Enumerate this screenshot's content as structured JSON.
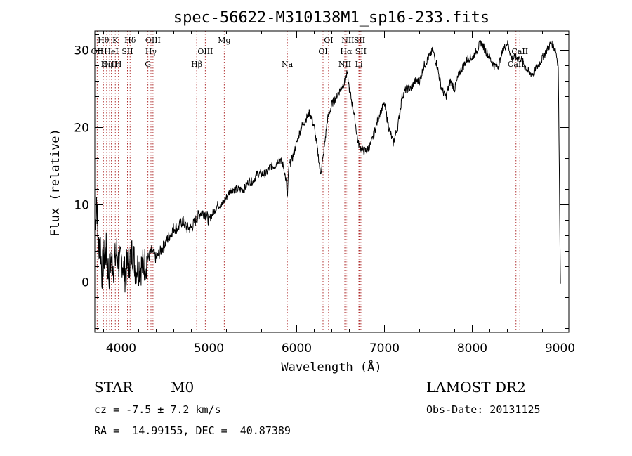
{
  "chart_data": {
    "type": "line",
    "title": "spec-56622-M310138M1_sp16-233.fits",
    "xlabel": "Wavelength (Å)",
    "ylabel": "Flux (relative)",
    "xlim": [
      3700,
      9100
    ],
    "ylim": [
      -6.5,
      32.5
    ],
    "xticks": [
      4000,
      5000,
      6000,
      7000,
      8000,
      9000
    ],
    "yticks": [
      0,
      10,
      20,
      30
    ],
    "series": [
      {
        "name": "flux",
        "x": [
          3700,
          3720,
          3740,
          3760,
          3780,
          3800,
          3830,
          3860,
          3890,
          3920,
          3950,
          3980,
          4010,
          4040,
          4070,
          4100,
          4130,
          4160,
          4200,
          4250,
          4300,
          4350,
          4400,
          4450,
          4500,
          4550,
          4600,
          4650,
          4700,
          4750,
          4800,
          4850,
          4900,
          4950,
          5000,
          5050,
          5100,
          5150,
          5200,
          5250,
          5300,
          5350,
          5400,
          5450,
          5500,
          5550,
          5600,
          5650,
          5700,
          5750,
          5800,
          5850,
          5880,
          5895,
          5910,
          5950,
          6000,
          6050,
          6100,
          6150,
          6200,
          6250,
          6270,
          6300,
          6350,
          6400,
          6450,
          6500,
          6550,
          6575,
          6600,
          6650,
          6700,
          6750,
          6800,
          6850,
          6900,
          6950,
          7000,
          7050,
          7100,
          7150,
          7200,
          7250,
          7300,
          7350,
          7400,
          7450,
          7500,
          7550,
          7600,
          7650,
          7700,
          7750,
          7800,
          7850,
          7900,
          7950,
          8000,
          8050,
          8100,
          8150,
          8200,
          8250,
          8300,
          8350,
          8400,
          8450,
          8500,
          8550,
          8600,
          8650,
          8700,
          8750,
          8800,
          8850,
          8900,
          8950,
          8980,
          9000,
          9005
        ],
        "y": [
          7,
          11,
          4,
          6,
          1,
          3,
          4,
          1,
          3,
          2,
          4,
          2,
          3,
          1,
          2,
          3,
          4,
          2,
          2,
          2,
          3,
          4,
          3,
          4,
          5,
          6,
          7,
          7,
          8,
          7,
          7,
          8,
          9,
          9,
          8,
          9,
          10,
          10,
          11,
          12,
          12,
          12,
          12,
          13,
          13,
          14,
          14,
          14,
          15,
          15,
          16,
          15,
          13,
          11,
          15,
          16,
          18,
          20,
          21,
          22,
          20,
          16,
          14,
          16,
          21,
          23,
          24,
          25,
          26,
          27,
          25,
          22,
          18,
          17,
          17,
          18,
          20,
          22,
          23,
          20,
          18,
          20,
          24,
          25,
          25,
          26,
          26,
          28,
          29,
          30,
          28,
          25,
          24,
          26,
          25,
          27,
          28,
          29,
          29,
          30,
          31,
          30,
          29,
          28,
          28,
          30,
          31,
          29,
          29,
          29,
          28,
          27,
          27,
          28,
          29,
          30,
          31,
          30,
          28,
          5,
          -0.2
        ]
      }
    ],
    "emission_lines": [
      {
        "label": "Hθ",
        "x": 3798,
        "row": 0
      },
      {
        "label": "OII",
        "x": 3727,
        "row": 1
      },
      {
        "label": "OIII",
        "x": 3869,
        "row": 2
      },
      {
        "label": "K",
        "x": 3934,
        "row": 0
      },
      {
        "label": "HeI",
        "x": 3889,
        "row": 1
      },
      {
        "label": "Hη",
        "x": 3835,
        "row": 2
      },
      {
        "label": "Hδ",
        "x": 4102,
        "row": 0
      },
      {
        "label": "SII",
        "x": 4072,
        "row": 1
      },
      {
        "label": "H",
        "x": 3969,
        "row": 2
      },
      {
        "label": "OIII",
        "x": 4363,
        "row": 0
      },
      {
        "label": "Hγ",
        "x": 4340,
        "row": 1
      },
      {
        "label": "G",
        "x": 4305,
        "row": 2
      },
      {
        "label": "OIII",
        "x": 4959,
        "row": 1
      },
      {
        "label": "Hβ",
        "x": 4861,
        "row": 2
      },
      {
        "label": "Mg",
        "x": 5175,
        "row": 0
      },
      {
        "label": "Na",
        "x": 5893,
        "row": 2
      },
      {
        "label": "OI",
        "x": 6363,
        "row": 0
      },
      {
        "label": "OI",
        "x": 6300,
        "row": 1
      },
      {
        "label": "NII",
        "x": 6583,
        "row": 0
      },
      {
        "label": "Hα",
        "x": 6563,
        "row": 1
      },
      {
        "label": "NII",
        "x": 6548,
        "row": 2
      },
      {
        "label": "SII",
        "x": 6716,
        "row": 0
      },
      {
        "label": "SII",
        "x": 6731,
        "row": 1
      },
      {
        "label": "Li",
        "x": 6708,
        "row": 2
      },
      {
        "label": "CaII",
        "x": 8542,
        "row": 1
      },
      {
        "label": "CaII",
        "x": 8498,
        "row": 2
      }
    ]
  },
  "info": {
    "object_class": "STAR",
    "subclass": "M0",
    "survey": "LAMOST DR2",
    "redshift": "cz = -7.5 ± 7.2 km/s",
    "obs_date": "Obs-Date: 20131125",
    "coords": "RA =  14.99155, DEC =  40.87389"
  }
}
